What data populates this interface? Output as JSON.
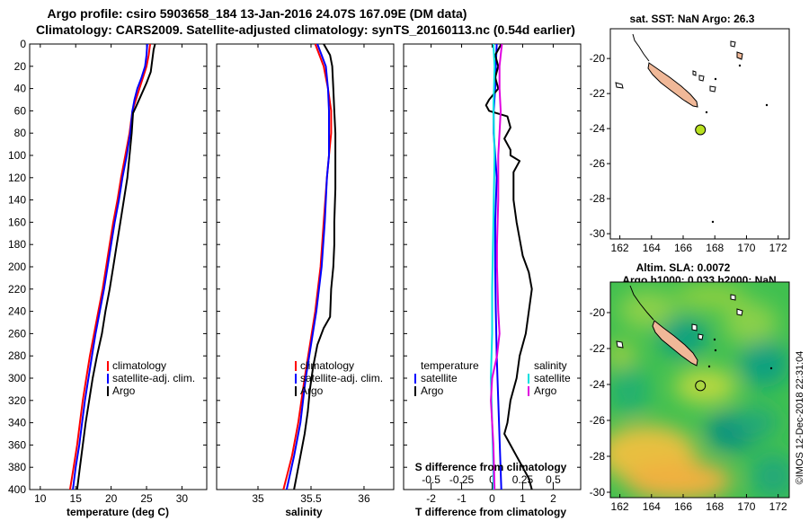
{
  "title_line1": "Argo profile: csiro 5903658_184 13-Jan-2016 24.07S 167.09E (DM data)",
  "title_line2": "Climatology: CARS2009. Satellite-adjusted climatology: synTS_20160113.nc (0.54d earlier)",
  "timestamp": "©IMOS 12-Dec-2018 22:31:04",
  "colors": {
    "climatology": "#ff0000",
    "satellite_adj": "#0000ff",
    "argo": "#000000",
    "t_satellite": "#0000ff",
    "s_satellite": "#00e0e0",
    "s_argo": "#e000e0",
    "land": "#f0b898",
    "sst_dot": "#b8e020"
  },
  "chart_data": [
    {
      "type": "line",
      "id": "temperature",
      "xlabel": "temperature (deg C)",
      "xlim": [
        8.5,
        33.5
      ],
      "xticks": [
        10,
        15,
        20,
        25,
        30
      ],
      "ylim": [
        0,
        400
      ],
      "yticks": [
        0,
        20,
        40,
        60,
        80,
        100,
        120,
        140,
        160,
        180,
        200,
        220,
        240,
        260,
        280,
        300,
        320,
        340,
        360,
        380,
        400
      ],
      "legend": [
        "climatology",
        "satellite-adj. clim.",
        "Argo"
      ],
      "series": [
        {
          "name": "climatology",
          "color": "#ff0000",
          "points": [
            [
              25.5,
              0
            ],
            [
              25.3,
              10
            ],
            [
              25.0,
              20
            ],
            [
              24.5,
              30
            ],
            [
              24.0,
              40
            ],
            [
              23.5,
              50
            ],
            [
              23.0,
              60
            ],
            [
              22.6,
              80
            ],
            [
              22.0,
              100
            ],
            [
              21.4,
              120
            ],
            [
              20.9,
              140
            ],
            [
              20.3,
              160
            ],
            [
              19.8,
              180
            ],
            [
              19.3,
              200
            ],
            [
              18.8,
              220
            ],
            [
              18.2,
              240
            ],
            [
              17.6,
              260
            ],
            [
              17.0,
              280
            ],
            [
              16.5,
              300
            ],
            [
              16.0,
              320
            ],
            [
              15.6,
              340
            ],
            [
              15.2,
              360
            ],
            [
              14.7,
              380
            ],
            [
              14.2,
              400
            ]
          ]
        },
        {
          "name": "satellite-adj. clim.",
          "color": "#0000ff",
          "points": [
            [
              25.1,
              0
            ],
            [
              25.0,
              10
            ],
            [
              24.8,
              20
            ],
            [
              24.3,
              30
            ],
            [
              23.7,
              40
            ],
            [
              23.3,
              50
            ],
            [
              23.0,
              60
            ],
            [
              22.7,
              80
            ],
            [
              22.2,
              100
            ],
            [
              21.6,
              120
            ],
            [
              21.1,
              140
            ],
            [
              20.5,
              160
            ],
            [
              20.0,
              180
            ],
            [
              19.5,
              200
            ],
            [
              19.0,
              220
            ],
            [
              18.4,
              240
            ],
            [
              17.8,
              260
            ],
            [
              17.3,
              280
            ],
            [
              16.8,
              300
            ],
            [
              16.3,
              320
            ],
            [
              15.9,
              340
            ],
            [
              15.5,
              360
            ],
            [
              15.0,
              380
            ],
            [
              14.6,
              400
            ]
          ]
        },
        {
          "name": "Argo",
          "color": "#000000",
          "points": [
            [
              26.2,
              0
            ],
            [
              26.0,
              5
            ],
            [
              25.8,
              15
            ],
            [
              25.6,
              25
            ],
            [
              25.0,
              35
            ],
            [
              24.3,
              45
            ],
            [
              23.6,
              55
            ],
            [
              23.1,
              62
            ],
            [
              22.9,
              80
            ],
            [
              22.6,
              100
            ],
            [
              22.3,
              120
            ],
            [
              21.8,
              140
            ],
            [
              21.3,
              160
            ],
            [
              20.8,
              180
            ],
            [
              20.3,
              200
            ],
            [
              19.8,
              220
            ],
            [
              19.2,
              240
            ],
            [
              18.7,
              260
            ],
            [
              18.0,
              280
            ],
            [
              17.4,
              300
            ],
            [
              16.9,
              320
            ],
            [
              16.4,
              340
            ],
            [
              16.0,
              360
            ],
            [
              15.6,
              380
            ],
            [
              15.2,
              400
            ]
          ]
        }
      ]
    },
    {
      "type": "line",
      "id": "salinity",
      "xlabel": "salinity",
      "xlim": [
        34.61,
        36.28
      ],
      "xticks": [
        35,
        35.5,
        36
      ],
      "xtick_labels": [
        "35",
        "35.5",
        "36"
      ],
      "ylim": [
        0,
        400
      ],
      "legend": [
        "climatology",
        "satellite-adj. clim.",
        "Argo"
      ],
      "series": [
        {
          "name": "climatology",
          "color": "#ff0000",
          "points": [
            [
              35.54,
              0
            ],
            [
              35.58,
              10
            ],
            [
              35.62,
              20
            ],
            [
              35.66,
              40
            ],
            [
              35.69,
              60
            ],
            [
              35.69,
              80
            ],
            [
              35.67,
              100
            ],
            [
              35.65,
              120
            ],
            [
              35.62,
              160
            ],
            [
              35.59,
              200
            ],
            [
              35.54,
              240
            ],
            [
              35.49,
              270
            ],
            [
              35.44,
              300
            ],
            [
              35.38,
              340
            ],
            [
              35.32,
              370
            ],
            [
              35.24,
              400
            ]
          ]
        },
        {
          "name": "satellite-adj. clim.",
          "color": "#0000ff",
          "points": [
            [
              35.56,
              0
            ],
            [
              35.6,
              10
            ],
            [
              35.64,
              20
            ],
            [
              35.66,
              40
            ],
            [
              35.67,
              60
            ],
            [
              35.67,
              100
            ],
            [
              35.65,
              120
            ],
            [
              35.63,
              160
            ],
            [
              35.6,
              200
            ],
            [
              35.55,
              240
            ],
            [
              35.5,
              270
            ],
            [
              35.45,
              300
            ],
            [
              35.4,
              340
            ],
            [
              35.34,
              370
            ],
            [
              35.27,
              400
            ]
          ]
        },
        {
          "name": "Argo",
          "color": "#000000",
          "points": [
            [
              35.62,
              0
            ],
            [
              35.68,
              10
            ],
            [
              35.7,
              20
            ],
            [
              35.71,
              40
            ],
            [
              35.72,
              60
            ],
            [
              35.73,
              80
            ],
            [
              35.73,
              100
            ],
            [
              35.73,
              130
            ],
            [
              35.72,
              160
            ],
            [
              35.72,
              180
            ],
            [
              35.71,
              200
            ],
            [
              35.69,
              220
            ],
            [
              35.68,
              245
            ],
            [
              35.62,
              255
            ],
            [
              35.56,
              270
            ],
            [
              35.52,
              290
            ],
            [
              35.49,
              310
            ],
            [
              35.47,
              330
            ],
            [
              35.44,
              350
            ],
            [
              35.4,
              370
            ],
            [
              35.36,
              390
            ],
            [
              35.34,
              400
            ]
          ]
        }
      ]
    },
    {
      "type": "line",
      "id": "differences",
      "xlabel": "T difference from climatology",
      "xlim": [
        -2.9,
        2.9
      ],
      "xticks": [
        -2,
        -1,
        0,
        1,
        2
      ],
      "xtick_labels": [
        "-2",
        "-1",
        "0",
        "1",
        "2"
      ],
      "top_axis_label": "S difference from climatology",
      "top_xlim": [
        -0.725,
        0.725
      ],
      "top_xticks": [
        -0.5,
        -0.25,
        0,
        0.25,
        0.5
      ],
      "top_xtick_labels": [
        "-0.5",
        "-0.25",
        "0",
        "0.25",
        "0.5"
      ],
      "ylim": [
        0,
        400
      ],
      "legend_temperature_title": "temperature",
      "legend_salinity_title": "salinity",
      "legend_temperature": [
        "satellite",
        "Argo"
      ],
      "legend_salinity": [
        "satellite",
        "Argo"
      ],
      "series": [
        {
          "name": "T satellite",
          "color": "#0000ff",
          "axis": "T",
          "points": [
            [
              0.15,
              0
            ],
            [
              0.12,
              20
            ],
            [
              0.1,
              40
            ],
            [
              0.05,
              60
            ],
            [
              0.05,
              80
            ],
            [
              0.1,
              100
            ],
            [
              0.15,
              120
            ],
            [
              0.1,
              160
            ],
            [
              0.1,
              200
            ],
            [
              0.12,
              240
            ],
            [
              0.15,
              280
            ],
            [
              0.2,
              320
            ],
            [
              0.25,
              360
            ],
            [
              0.3,
              400
            ]
          ]
        },
        {
          "name": "T Argo",
          "color": "#000000",
          "axis": "T",
          "points": [
            [
              0.3,
              0
            ],
            [
              0.1,
              10
            ],
            [
              0.2,
              20
            ],
            [
              0.1,
              30
            ],
            [
              0.2,
              40
            ],
            [
              -0.1,
              50
            ],
            [
              -0.2,
              55
            ],
            [
              -0.1,
              60
            ],
            [
              0.5,
              65
            ],
            [
              0.6,
              75
            ],
            [
              0.4,
              85
            ],
            [
              0.6,
              95
            ],
            [
              0.6,
              100
            ],
            [
              0.9,
              105
            ],
            [
              0.7,
              115
            ],
            [
              0.7,
              140
            ],
            [
              0.8,
              160
            ],
            [
              0.9,
              175
            ],
            [
              1.0,
              190
            ],
            [
              1.2,
              205
            ],
            [
              1.3,
              220
            ],
            [
              1.2,
              240
            ],
            [
              1.1,
              260
            ],
            [
              0.9,
              280
            ],
            [
              0.8,
              300
            ],
            [
              0.6,
              320
            ],
            [
              0.5,
              340
            ],
            [
              0.4,
              350
            ],
            [
              0.6,
              360
            ],
            [
              0.8,
              370
            ],
            [
              1.0,
              380
            ],
            [
              1.2,
              390
            ],
            [
              1.3,
              400
            ]
          ]
        },
        {
          "name": "S satellite",
          "color": "#00e0e0",
          "axis": "S",
          "points": [
            [
              0.01,
              0
            ],
            [
              0.02,
              20
            ],
            [
              0.01,
              60
            ],
            [
              0.02,
              100
            ],
            [
              0.01,
              160
            ],
            [
              0.0,
              220
            ],
            [
              0.0,
              260
            ],
            [
              -0.01,
              300
            ],
            [
              0.0,
              340
            ],
            [
              0.01,
              380
            ],
            [
              0.01,
              400
            ]
          ]
        },
        {
          "name": "S Argo",
          "color": "#e000e0",
          "axis": "S",
          "points": [
            [
              0.08,
              0
            ],
            [
              0.07,
              10
            ],
            [
              0.06,
              20
            ],
            [
              0.06,
              40
            ],
            [
              0.07,
              60
            ],
            [
              0.06,
              80
            ],
            [
              0.05,
              100
            ],
            [
              0.05,
              140
            ],
            [
              0.04,
              180
            ],
            [
              0.04,
              200
            ],
            [
              0.05,
              240
            ],
            [
              0.06,
              260
            ],
            [
              0.04,
              280
            ],
            [
              0.0,
              300
            ],
            [
              -0.01,
              320
            ],
            [
              0.0,
              340
            ],
            [
              0.01,
              360
            ],
            [
              0.02,
              400
            ]
          ]
        }
      ]
    },
    {
      "type": "map",
      "id": "sst_map",
      "title": "sat. SST: NaN Argo: 26.3",
      "xlim": [
        161.4,
        172.7
      ],
      "ylim": [
        -30.3,
        -18.3
      ],
      "xticks": [
        162,
        164,
        166,
        168,
        170,
        172
      ],
      "yticks": [
        -20,
        -22,
        -24,
        -26,
        -28,
        -30
      ],
      "argo_position": [
        167.09,
        -24.07
      ]
    },
    {
      "type": "map",
      "id": "sla_map",
      "title_line1": "Altim. SLA: 0.0072",
      "title_line2": "Argo h1000: 0.033 h2000: NaN",
      "xlim": [
        161.4,
        172.7
      ],
      "ylim": [
        -30.3,
        -18.3
      ],
      "xticks": [
        162,
        164,
        166,
        168,
        170,
        172
      ],
      "yticks": [
        -20,
        -22,
        -24,
        -26,
        -28,
        -30
      ],
      "argo_position": [
        167.09,
        -24.07
      ]
    }
  ]
}
